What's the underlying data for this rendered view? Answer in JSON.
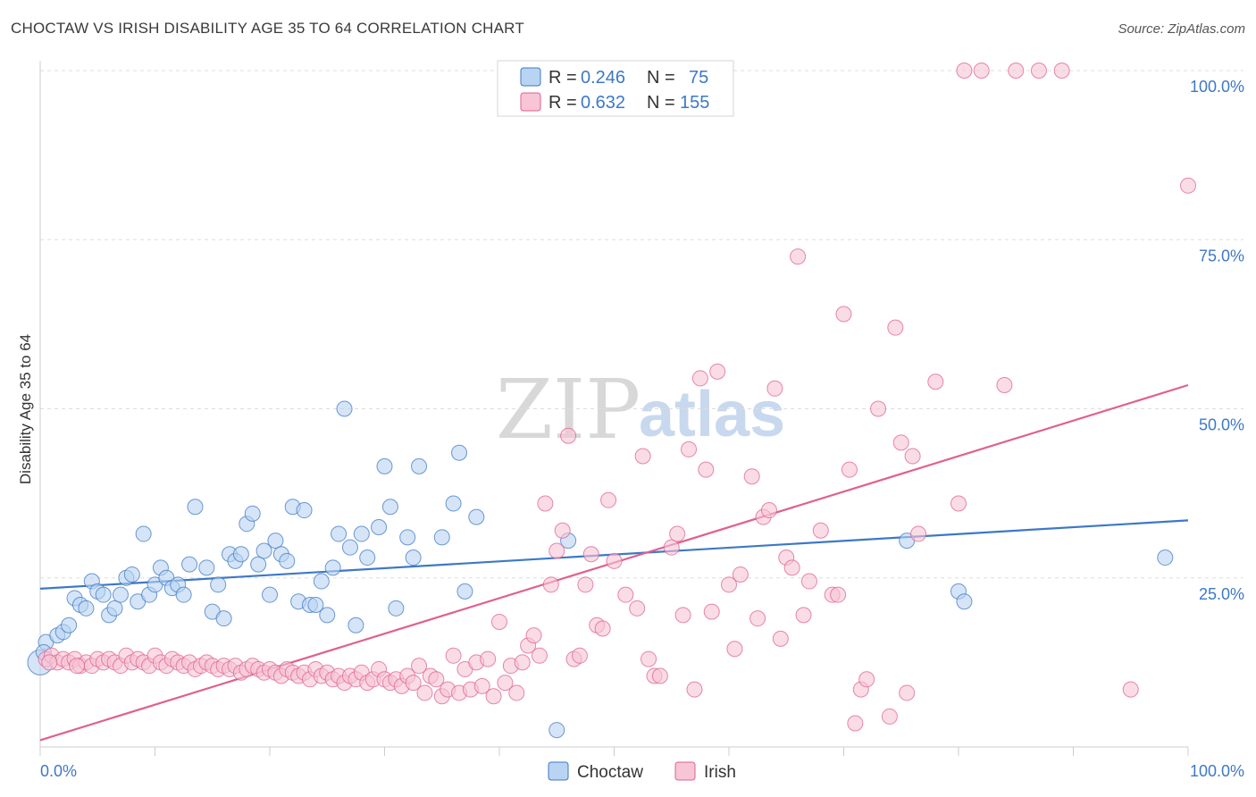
{
  "title": "CHOCTAW VS IRISH DISABILITY AGE 35 TO 64 CORRELATION CHART",
  "source": "Source: ZipAtlas.com",
  "watermark": {
    "zip": "ZIP",
    "atlas": "atlas"
  },
  "colors": {
    "choctaw": "#3d78c6",
    "choctaw_fill": "#b9d3f2",
    "irish": "#e0608f",
    "irish_fill": "#f7c5d6",
    "grid": "#dddddd",
    "tick_label": "#3d78c6"
  },
  "legend": {
    "rows": [
      {
        "r_label": "R =",
        "r_value": "0.246",
        "n_label": "N =",
        "n_value": "75"
      },
      {
        "r_label": "R =",
        "r_value": "0.632",
        "n_label": "N =",
        "n_value": "155"
      }
    ]
  },
  "bottom_legend": [
    "Choctaw",
    "Irish"
  ],
  "chart_data": {
    "type": "scatter",
    "title": "CHOCTAW VS IRISH DISABILITY AGE 35 TO 64 CORRELATION CHART",
    "xlabel": "",
    "ylabel": "Disability Age 35 to 64",
    "xlim": [
      0,
      100
    ],
    "ylim": [
      0,
      100
    ],
    "x_tick_labels": [
      "0.0%",
      "100.0%"
    ],
    "y_tick_labels": [
      "100.0%",
      "75.0%",
      "50.0%",
      "25.0%"
    ],
    "y_grid": [
      25,
      50,
      75,
      100
    ],
    "grid": true,
    "legend_position": "top-center",
    "series": [
      {
        "name": "Choctaw",
        "r": 0.246,
        "n": 75,
        "trend": {
          "x": [
            0,
            100
          ],
          "y": [
            23.4,
            33.5
          ]
        },
        "points": [
          [
            0.0,
            12.5
          ],
          [
            0.5,
            15.5
          ],
          [
            1.5,
            16.5
          ],
          [
            2.0,
            17.0
          ],
          [
            2.5,
            18.0
          ],
          [
            3.0,
            22.0
          ],
          [
            3.5,
            21.0
          ],
          [
            4.0,
            20.5
          ],
          [
            4.5,
            24.5
          ],
          [
            5.0,
            23.0
          ],
          [
            5.5,
            22.5
          ],
          [
            6.0,
            19.5
          ],
          [
            6.5,
            20.5
          ],
          [
            7.0,
            22.5
          ],
          [
            7.5,
            25.0
          ],
          [
            8.0,
            25.5
          ],
          [
            8.5,
            21.5
          ],
          [
            9.0,
            31.5
          ],
          [
            9.5,
            22.5
          ],
          [
            10.0,
            24.0
          ],
          [
            10.5,
            26.5
          ],
          [
            11.0,
            25.0
          ],
          [
            11.5,
            23.5
          ],
          [
            12.0,
            24.0
          ],
          [
            12.5,
            22.5
          ],
          [
            13.0,
            27.0
          ],
          [
            13.5,
            35.5
          ],
          [
            14.5,
            26.5
          ],
          [
            15.0,
            20.0
          ],
          [
            15.5,
            24.0
          ],
          [
            16.0,
            19.0
          ],
          [
            16.5,
            28.5
          ],
          [
            17.0,
            27.5
          ],
          [
            17.5,
            28.5
          ],
          [
            18.0,
            33.0
          ],
          [
            18.5,
            34.5
          ],
          [
            19.0,
            27.0
          ],
          [
            19.5,
            29.0
          ],
          [
            20.0,
            22.5
          ],
          [
            20.5,
            30.5
          ],
          [
            21.0,
            28.5
          ],
          [
            21.5,
            27.5
          ],
          [
            22.0,
            35.5
          ],
          [
            22.5,
            21.5
          ],
          [
            23.0,
            35.0
          ],
          [
            23.5,
            21.0
          ],
          [
            24.0,
            21.0
          ],
          [
            24.5,
            24.5
          ],
          [
            25.0,
            19.5
          ],
          [
            25.5,
            26.5
          ],
          [
            26.0,
            31.5
          ],
          [
            26.5,
            50.0
          ],
          [
            27.0,
            29.5
          ],
          [
            27.5,
            18.0
          ],
          [
            28.0,
            31.5
          ],
          [
            28.5,
            28.0
          ],
          [
            29.5,
            32.5
          ],
          [
            30.0,
            41.5
          ],
          [
            30.5,
            35.5
          ],
          [
            31.0,
            20.5
          ],
          [
            32.0,
            31.0
          ],
          [
            32.5,
            28.0
          ],
          [
            33.0,
            41.5
          ],
          [
            35.0,
            31.0
          ],
          [
            36.0,
            36.0
          ],
          [
            36.5,
            43.5
          ],
          [
            37.0,
            23.0
          ],
          [
            38.0,
            34.0
          ],
          [
            45.0,
            2.5
          ],
          [
            46.0,
            30.5
          ],
          [
            75.5,
            30.5
          ],
          [
            80.0,
            23.0
          ],
          [
            80.5,
            21.5
          ],
          [
            98.0,
            28.0
          ],
          [
            0.3,
            14.0
          ]
        ]
      },
      {
        "name": "Irish",
        "r": 0.632,
        "n": 155,
        "trend": {
          "x": [
            0,
            100
          ],
          "y": [
            1.0,
            53.5
          ]
        },
        "points": [
          [
            0.5,
            13.0
          ],
          [
            1.0,
            13.5
          ],
          [
            1.5,
            12.5
          ],
          [
            2.0,
            13.0
          ],
          [
            2.5,
            12.5
          ],
          [
            3.0,
            13.0
          ],
          [
            3.5,
            12.0
          ],
          [
            4.0,
            12.5
          ],
          [
            4.5,
            12.0
          ],
          [
            5.0,
            13.0
          ],
          [
            5.5,
            12.5
          ],
          [
            6.0,
            13.0
          ],
          [
            6.5,
            12.5
          ],
          [
            7.0,
            12.0
          ],
          [
            7.5,
            13.5
          ],
          [
            8.0,
            12.5
          ],
          [
            8.5,
            13.0
          ],
          [
            9.0,
            12.5
          ],
          [
            9.5,
            12.0
          ],
          [
            10.0,
            13.5
          ],
          [
            10.5,
            12.5
          ],
          [
            11.0,
            12.0
          ],
          [
            11.5,
            13.0
          ],
          [
            12.0,
            12.5
          ],
          [
            12.5,
            12.0
          ],
          [
            13.0,
            12.5
          ],
          [
            13.5,
            11.5
          ],
          [
            14.0,
            12.0
          ],
          [
            14.5,
            12.5
          ],
          [
            15.0,
            12.0
          ],
          [
            15.5,
            11.5
          ],
          [
            16.0,
            12.0
          ],
          [
            16.5,
            11.5
          ],
          [
            17.0,
            12.0
          ],
          [
            17.5,
            11.0
          ],
          [
            18.0,
            11.5
          ],
          [
            18.5,
            12.0
          ],
          [
            19.0,
            11.5
          ],
          [
            19.5,
            11.0
          ],
          [
            20.0,
            11.5
          ],
          [
            20.5,
            11.0
          ],
          [
            21.0,
            10.5
          ],
          [
            21.5,
            11.5
          ],
          [
            22.0,
            11.0
          ],
          [
            22.5,
            10.5
          ],
          [
            23.0,
            11.0
          ],
          [
            23.5,
            10.0
          ],
          [
            24.0,
            11.5
          ],
          [
            24.5,
            10.5
          ],
          [
            25.0,
            11.0
          ],
          [
            25.5,
            10.0
          ],
          [
            26.0,
            10.5
          ],
          [
            26.5,
            9.5
          ],
          [
            27.0,
            10.5
          ],
          [
            27.5,
            10.0
          ],
          [
            28.0,
            11.0
          ],
          [
            28.5,
            9.5
          ],
          [
            29.0,
            10.0
          ],
          [
            29.5,
            11.5
          ],
          [
            30.0,
            10.0
          ],
          [
            30.5,
            9.5
          ],
          [
            31.0,
            10.0
          ],
          [
            31.5,
            9.0
          ],
          [
            32.0,
            10.5
          ],
          [
            32.5,
            9.5
          ],
          [
            33.0,
            12.0
          ],
          [
            33.5,
            8.0
          ],
          [
            34.0,
            10.5
          ],
          [
            34.5,
            10.0
          ],
          [
            35.0,
            7.5
          ],
          [
            35.5,
            8.5
          ],
          [
            36.0,
            13.5
          ],
          [
            36.5,
            8.0
          ],
          [
            37.0,
            11.5
          ],
          [
            37.5,
            8.5
          ],
          [
            38.0,
            12.5
          ],
          [
            38.5,
            9.0
          ],
          [
            39.0,
            13.0
          ],
          [
            39.5,
            7.5
          ],
          [
            40.0,
            18.5
          ],
          [
            40.5,
            9.5
          ],
          [
            41.0,
            12.0
          ],
          [
            41.5,
            8.0
          ],
          [
            42.0,
            12.5
          ],
          [
            42.5,
            15.0
          ],
          [
            43.0,
            16.5
          ],
          [
            43.5,
            13.5
          ],
          [
            44.0,
            36.0
          ],
          [
            44.5,
            24.0
          ],
          [
            45.0,
            29.0
          ],
          [
            45.5,
            32.0
          ],
          [
            46.0,
            46.0
          ],
          [
            46.5,
            13.0
          ],
          [
            47.0,
            13.5
          ],
          [
            47.5,
            24.0
          ],
          [
            48.0,
            28.5
          ],
          [
            48.5,
            18.0
          ],
          [
            49.0,
            17.5
          ],
          [
            49.5,
            36.5
          ],
          [
            50.0,
            27.5
          ],
          [
            51.0,
            22.5
          ],
          [
            52.0,
            20.5
          ],
          [
            52.5,
            43.0
          ],
          [
            53.0,
            13.0
          ],
          [
            53.5,
            10.5
          ],
          [
            54.0,
            10.5
          ],
          [
            55.0,
            29.5
          ],
          [
            55.5,
            31.5
          ],
          [
            56.0,
            19.5
          ],
          [
            56.5,
            44.0
          ],
          [
            57.0,
            8.5
          ],
          [
            57.5,
            54.5
          ],
          [
            58.0,
            41.0
          ],
          [
            58.5,
            20.0
          ],
          [
            59.0,
            55.5
          ],
          [
            60.0,
            24.0
          ],
          [
            60.5,
            14.5
          ],
          [
            61.0,
            25.5
          ],
          [
            62.0,
            40.0
          ],
          [
            62.5,
            19.0
          ],
          [
            63.0,
            34.0
          ],
          [
            63.5,
            35.0
          ],
          [
            64.0,
            53.0
          ],
          [
            64.5,
            16.0
          ],
          [
            65.0,
            28.0
          ],
          [
            65.5,
            26.5
          ],
          [
            66.0,
            72.5
          ],
          [
            66.5,
            19.5
          ],
          [
            67.0,
            24.5
          ],
          [
            68.0,
            32.0
          ],
          [
            69.0,
            22.5
          ],
          [
            69.5,
            22.5
          ],
          [
            70.0,
            64.0
          ],
          [
            70.5,
            41.0
          ],
          [
            71.0,
            3.5
          ],
          [
            71.5,
            8.5
          ],
          [
            72.0,
            10.0
          ],
          [
            73.0,
            50.0
          ],
          [
            74.0,
            4.5
          ],
          [
            74.5,
            62.0
          ],
          [
            75.0,
            45.0
          ],
          [
            75.5,
            8.0
          ],
          [
            76.0,
            43.0
          ],
          [
            76.5,
            31.5
          ],
          [
            78.0,
            54.0
          ],
          [
            80.0,
            36.0
          ],
          [
            80.5,
            100.0
          ],
          [
            82.0,
            100.0
          ],
          [
            84.0,
            53.5
          ],
          [
            85.0,
            100.0
          ],
          [
            87.0,
            100.0
          ],
          [
            89.0,
            100.0
          ],
          [
            95.0,
            8.5
          ],
          [
            100.0,
            83.0
          ],
          [
            0.8,
            12.5
          ],
          [
            3.2,
            12.0
          ]
        ]
      }
    ]
  }
}
